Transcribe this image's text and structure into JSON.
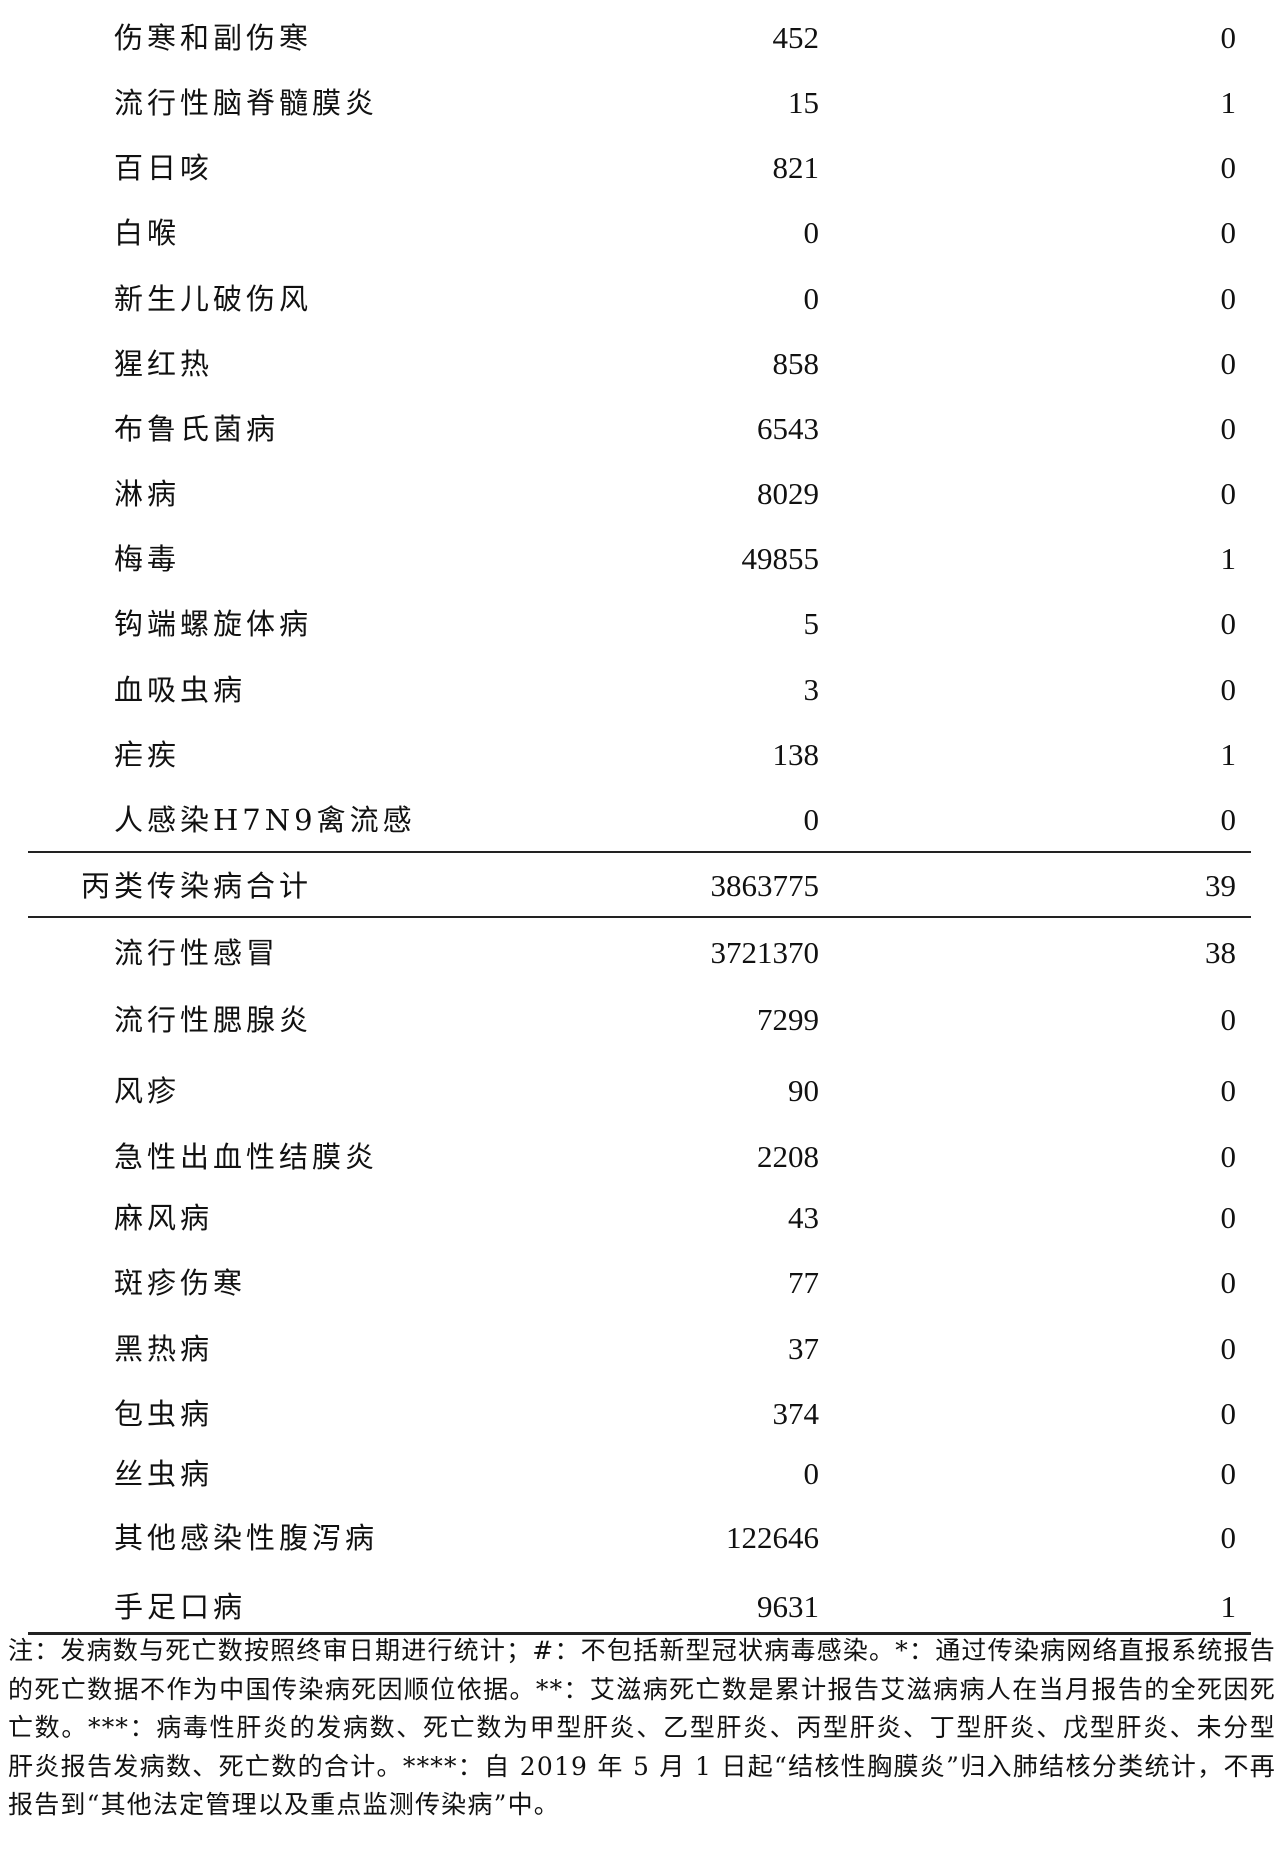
{
  "rows_top": [
    {
      "name": "伤寒和副伤寒",
      "cases": "452",
      "deaths": "0"
    },
    {
      "name": "流行性脑脊髓膜炎",
      "cases": "15",
      "deaths": "1"
    },
    {
      "name": "百日咳",
      "cases": "821",
      "deaths": "0"
    },
    {
      "name": "白喉",
      "cases": "0",
      "deaths": "0"
    },
    {
      "name": "新生儿破伤风",
      "cases": "0",
      "deaths": "0"
    },
    {
      "name": "猩红热",
      "cases": "858",
      "deaths": "0"
    },
    {
      "name": "布鲁氏菌病",
      "cases": "6543",
      "deaths": "0"
    },
    {
      "name": "淋病",
      "cases": "8029",
      "deaths": "0"
    },
    {
      "name": "梅毒",
      "cases": "49855",
      "deaths": "1"
    },
    {
      "name": "钩端螺旋体病",
      "cases": "5",
      "deaths": "0"
    },
    {
      "name": "血吸虫病",
      "cases": "3",
      "deaths": "0"
    },
    {
      "name": "疟疾",
      "cases": "138",
      "deaths": "1"
    },
    {
      "name": "人感染H7N9禽流感",
      "cases": "0",
      "deaths": "0"
    }
  ],
  "total": {
    "name": "丙类传染病合计",
    "cases": "3863775",
    "deaths": "39"
  },
  "rows_bottom": [
    {
      "name": "流行性感冒",
      "cases": "3721370",
      "deaths": "38"
    },
    {
      "name": "流行性腮腺炎",
      "cases": "7299",
      "deaths": "0"
    },
    {
      "name": "风疹",
      "cases": "90",
      "deaths": "0"
    },
    {
      "name": "急性出血性结膜炎",
      "cases": "2208",
      "deaths": "0"
    },
    {
      "name": "麻风病",
      "cases": "43",
      "deaths": "0"
    },
    {
      "name": "斑疹伤寒",
      "cases": "77",
      "deaths": "0"
    },
    {
      "name": "黑热病",
      "cases": "37",
      "deaths": "0"
    },
    {
      "name": "包虫病",
      "cases": "374",
      "deaths": "0"
    },
    {
      "name": "丝虫病",
      "cases": "0",
      "deaths": "0"
    },
    {
      "name": "其他感染性腹泻病",
      "cases": "122646",
      "deaths": "0"
    },
    {
      "name": "手足口病",
      "cases": "9631",
      "deaths": "1"
    }
  ],
  "footnote": "注：发病数与死亡数按照终审日期进行统计；#：不包括新型冠状病毒感染。*：通过传染病网络直报系统报告的死亡数据不作为中国传染病死因顺位依据。**：艾滋病死亡数是累计报告艾滋病病人在当月报告的全死因死亡数。***：病毒性肝炎的发病数、死亡数为甲型肝炎、乙型肝炎、丙型肝炎、丁型肝炎、戊型肝炎、未分型肝炎报告发病数、死亡数的合计。****：自 2019 年 5 月 1 日起“结核性胸膜炎”归入肺结核分类统计，不再报告到“其他法定管理以及重点监测传染病”中。"
}
